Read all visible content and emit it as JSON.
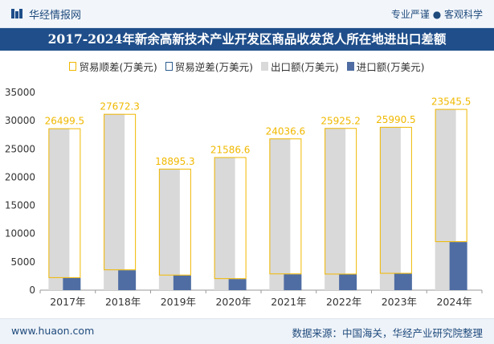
{
  "header": {
    "brand": "华经情报网",
    "tagline": "专业严谨 ● 客观科学"
  },
  "chart_data": {
    "type": "bar",
    "title": "2017-2024年新余高新技术产业开发区商品收发货人所在地进出口差额",
    "categories": [
      "2017年",
      "2018年",
      "2019年",
      "2020年",
      "2021年",
      "2022年",
      "2023年",
      "2024年"
    ],
    "series": [
      {
        "name": "贸易顺差(万美元)",
        "values": [
          26499.5,
          27672.3,
          18895.3,
          21586.6,
          24036.6,
          25925.2,
          25990.5,
          23545.5
        ]
      },
      {
        "name": "贸易逆差(万美元)",
        "values": [
          0,
          0,
          0,
          0,
          0,
          0,
          0,
          0
        ]
      },
      {
        "name": "出口额(万美元)",
        "values": [
          28650,
          31200,
          21500,
          23550,
          26850,
          28700,
          28900,
          32070
        ]
      },
      {
        "name": "进口额(万美元)",
        "values": [
          2150,
          3530,
          2600,
          1970,
          2810,
          2780,
          2910,
          8520
        ]
      }
    ],
    "data_labels": [
      "26499.5",
      "27672.3",
      "18895.3",
      "21586.6",
      "24036.6",
      "25925.2",
      "25990.5",
      "23545.5"
    ],
    "yticks": [
      "0",
      "5000",
      "10000",
      "15000",
      "20000",
      "25000",
      "30000",
      "35000"
    ],
    "ylim": [
      0,
      35000
    ],
    "legend_position": "top",
    "colors": {
      "surplus_border": "#f0b800",
      "deficit_border": "#2e5d8f",
      "export": "#d9d9d9",
      "import": "#4f6da3",
      "label": "#f0b800"
    }
  },
  "footer": {
    "url": "www.huaon.com",
    "source": "数据来源：中国海关，华经产业研究院整理"
  }
}
